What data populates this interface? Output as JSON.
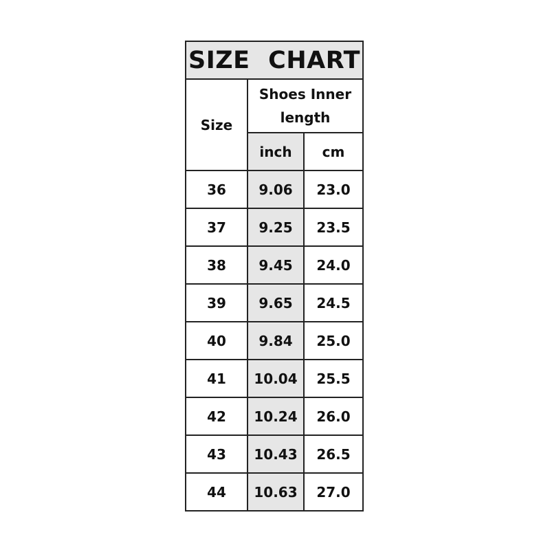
{
  "title": "SIZE CHART",
  "headers": {
    "size": "Size",
    "length": "Shoes Inner length",
    "inch": "inch",
    "cm": "cm"
  },
  "rows": [
    {
      "size": "36",
      "inch": "9.06",
      "cm": "23.0"
    },
    {
      "size": "37",
      "inch": "9.25",
      "cm": "23.5"
    },
    {
      "size": "38",
      "inch": "9.45",
      "cm": "24.0"
    },
    {
      "size": "39",
      "inch": "9.65",
      "cm": "24.5"
    },
    {
      "size": "40",
      "inch": "9.84",
      "cm": "25.0"
    },
    {
      "size": "41",
      "inch": "10.04",
      "cm": "25.5"
    },
    {
      "size": "42",
      "inch": "10.24",
      "cm": "26.0"
    },
    {
      "size": "43",
      "inch": "10.43",
      "cm": "26.5"
    },
    {
      "size": "44",
      "inch": "10.63",
      "cm": "27.0"
    }
  ],
  "colors": {
    "shade": "#e6e6e6",
    "border": "#222222"
  }
}
